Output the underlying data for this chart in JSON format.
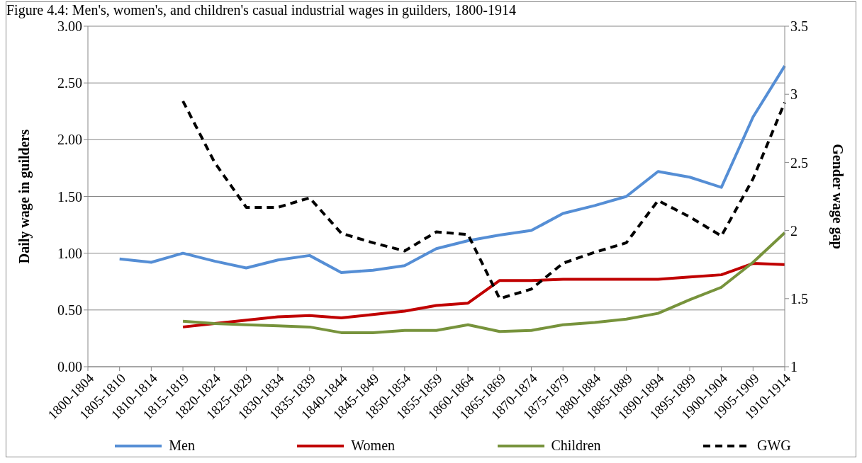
{
  "chart_data": {
    "type": "line",
    "title": "Figure 4.4: Men's, women's, and children's casual industrial wages in guilders, 1800-1914",
    "ylabel": "Daily wage in guilders",
    "y2label": "Gender wage gap",
    "categories": [
      "1800-1804",
      "1805-1810",
      "1810-1814",
      "1815-1819",
      "1820-1824",
      "1825-1829",
      "1830-1834",
      "1835-1839",
      "1840-1844",
      "1845-1849",
      "1850-1854",
      "1855-1859",
      "1860-1864",
      "1865-1869",
      "1870-1874",
      "1875-1879",
      "1880-1884",
      "1885-1889",
      "1890-1894",
      "1895-1899",
      "1900-1904",
      "1905-1909",
      "1910-1914"
    ],
    "series": [
      {
        "name": "Men",
        "color": "#558ed5",
        "values": [
          null,
          0.95,
          0.92,
          1.0,
          0.93,
          0.87,
          0.94,
          0.98,
          0.83,
          0.85,
          0.89,
          1.04,
          1.11,
          1.16,
          1.2,
          1.35,
          1.42,
          1.5,
          1.72,
          1.67,
          1.58,
          2.2,
          2.65
        ]
      },
      {
        "name": "Women",
        "color": "#c00000",
        "values": [
          null,
          null,
          null,
          0.35,
          0.38,
          0.41,
          0.44,
          0.45,
          0.43,
          0.46,
          0.49,
          0.54,
          0.56,
          0.76,
          0.76,
          0.77,
          0.77,
          0.77,
          0.77,
          0.79,
          0.81,
          0.91,
          0.9
        ]
      },
      {
        "name": "Children",
        "color": "#77933c",
        "values": [
          null,
          null,
          null,
          0.4,
          0.38,
          0.37,
          0.36,
          0.35,
          0.3,
          0.3,
          0.32,
          0.32,
          0.37,
          0.31,
          0.32,
          0.37,
          0.39,
          0.42,
          0.47,
          0.59,
          0.7,
          0.92,
          1.18
        ]
      },
      {
        "name": "GWG",
        "color": "#000000",
        "axis": "y2",
        "line_style": "dashed",
        "values": [
          null,
          null,
          null,
          2.95,
          2.5,
          2.17,
          2.17,
          2.24,
          1.98,
          1.91,
          1.85,
          1.99,
          1.97,
          1.5,
          1.57,
          1.76,
          1.84,
          1.91,
          2.22,
          2.1,
          1.96,
          2.38,
          2.94
        ]
      }
    ],
    "ylim": [
      0,
      3
    ],
    "yticks": [
      {
        "value": 0,
        "label": "0.00"
      },
      {
        "value": 0.5,
        "label": "0.50"
      },
      {
        "value": 1,
        "label": "1.00"
      },
      {
        "value": 1.5,
        "label": "1.50"
      },
      {
        "value": 2,
        "label": "2.00"
      },
      {
        "value": 2.5,
        "label": "2.50"
      },
      {
        "value": 3,
        "label": "3.00"
      }
    ],
    "y2lim": [
      1,
      3.5
    ],
    "y2ticks": [
      1,
      1.5,
      2,
      2.5,
      3,
      3.5
    ],
    "grid": "y",
    "legend": "bottom",
    "marker": "none",
    "line_style": "solid"
  }
}
